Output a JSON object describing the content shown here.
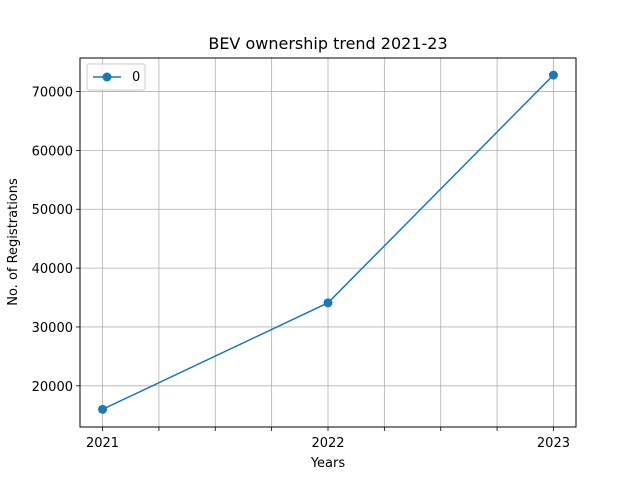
{
  "chart_data": {
    "type": "line",
    "title": "BEV ownership trend 2021-23",
    "xlabel": "Years",
    "ylabel": "No. of Registrations",
    "x": [
      2021,
      2022,
      2023
    ],
    "x_tick_labels": [
      "2021",
      "2022",
      "2023"
    ],
    "y_ticks": [
      20000,
      30000,
      40000,
      50000,
      60000,
      70000
    ],
    "y_tick_labels": [
      "20000",
      "30000",
      "40000",
      "50000",
      "60000",
      "70000"
    ],
    "ylim": [
      13000,
      75700
    ],
    "xlim": [
      2020.9,
      2023.1
    ],
    "grid": true,
    "legend_position": "top-left",
    "series": [
      {
        "name": "0",
        "values": [
          16000,
          34100,
          72800
        ],
        "color": "#1f77b4",
        "marker": "circle"
      }
    ]
  }
}
